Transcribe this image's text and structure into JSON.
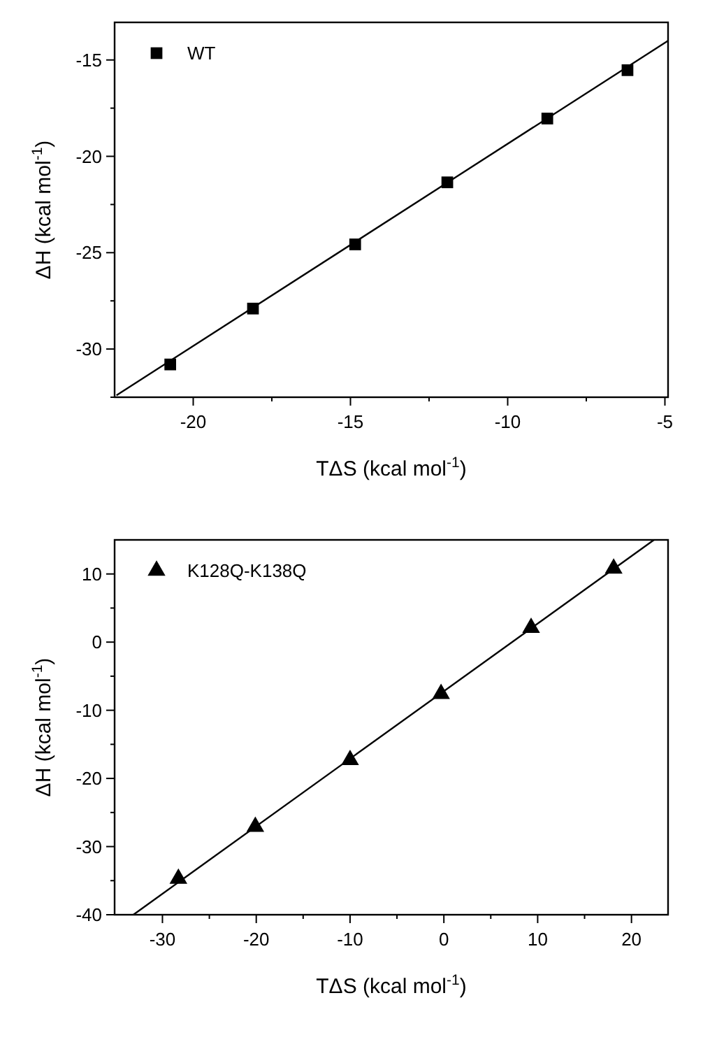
{
  "chart_data": [
    {
      "type": "scatter",
      "xlabel": "TΔS (kcal mol$^{-1}$)",
      "ylabel": "ΔH (kcal mol$^{-1}$)",
      "xlim": [
        -22.5,
        -4.9
      ],
      "ylim": [
        -32.5,
        -13.05
      ],
      "xticks": [
        -20,
        {
          "value": -17.5,
          "label": null
        },
        -15,
        {
          "value": -12.5,
          "label": null
        },
        -10,
        {
          "value": -7.5,
          "label": null
        },
        -5
      ],
      "yticks": [
        {
          "value": -32.5,
          "label": null
        },
        -30,
        {
          "value": -27.5,
          "label": null
        },
        -25,
        {
          "value": -22.5,
          "label": null
        },
        -20,
        {
          "value": -17.5,
          "label": null
        },
        -15
      ],
      "legend": "top left",
      "grid": false,
      "series": [
        {
          "name": "WT",
          "color": "#000000",
          "marker": "square",
          "x": [
            -20.73,
            -18.1,
            -14.85,
            -11.92,
            -8.74,
            -6.19
          ],
          "values": [
            -30.8,
            -27.9,
            -24.57,
            -21.35,
            -18.04,
            -15.53
          ]
        },
        {
          "type": "line",
          "color": "#000000",
          "line_style": "solid",
          "x": [
            -22.44,
            -4.9
          ],
          "values": [
            -32.4,
            -14.0
          ]
        }
      ]
    },
    {
      "type": "scatter",
      "xlabel": "TΔS (kcal mol$^{-1}$)",
      "ylabel": "ΔH (kcal mol$^{-1}$)",
      "xlim": [
        -35.1,
        23.9
      ],
      "ylim": [
        -40,
        15
      ],
      "xticks": [
        -30,
        {
          "value": -25,
          "label": null
        },
        -20,
        {
          "value": -15,
          "label": null
        },
        -10,
        {
          "value": -5,
          "label": null
        },
        0,
        {
          "value": 5,
          "label": null
        },
        10,
        {
          "value": 15,
          "label": null
        },
        20
      ],
      "yticks": [
        -40,
        {
          "value": -35,
          "label": null
        },
        -30,
        {
          "value": -25,
          "label": null
        },
        -20,
        {
          "value": -15,
          "label": null
        },
        -10,
        {
          "value": -5,
          "label": null
        },
        0,
        {
          "value": 5,
          "label": null
        },
        10
      ],
      "legend": "top left",
      "grid": false,
      "series": [
        {
          "name": "K128Q-K138Q",
          "color": "#000000",
          "marker": "triangle",
          "x": [
            -28.3,
            -20.1,
            -10.0,
            -0.3,
            9.3,
            18.1
          ],
          "values": [
            -34.7,
            -27.1,
            -17.3,
            -7.6,
            2.1,
            10.8
          ]
        },
        {
          "type": "line",
          "color": "#000000",
          "line_style": "solid",
          "x": [
            -33.1,
            22.4
          ],
          "values": [
            -40,
            15.0
          ]
        }
      ]
    }
  ]
}
